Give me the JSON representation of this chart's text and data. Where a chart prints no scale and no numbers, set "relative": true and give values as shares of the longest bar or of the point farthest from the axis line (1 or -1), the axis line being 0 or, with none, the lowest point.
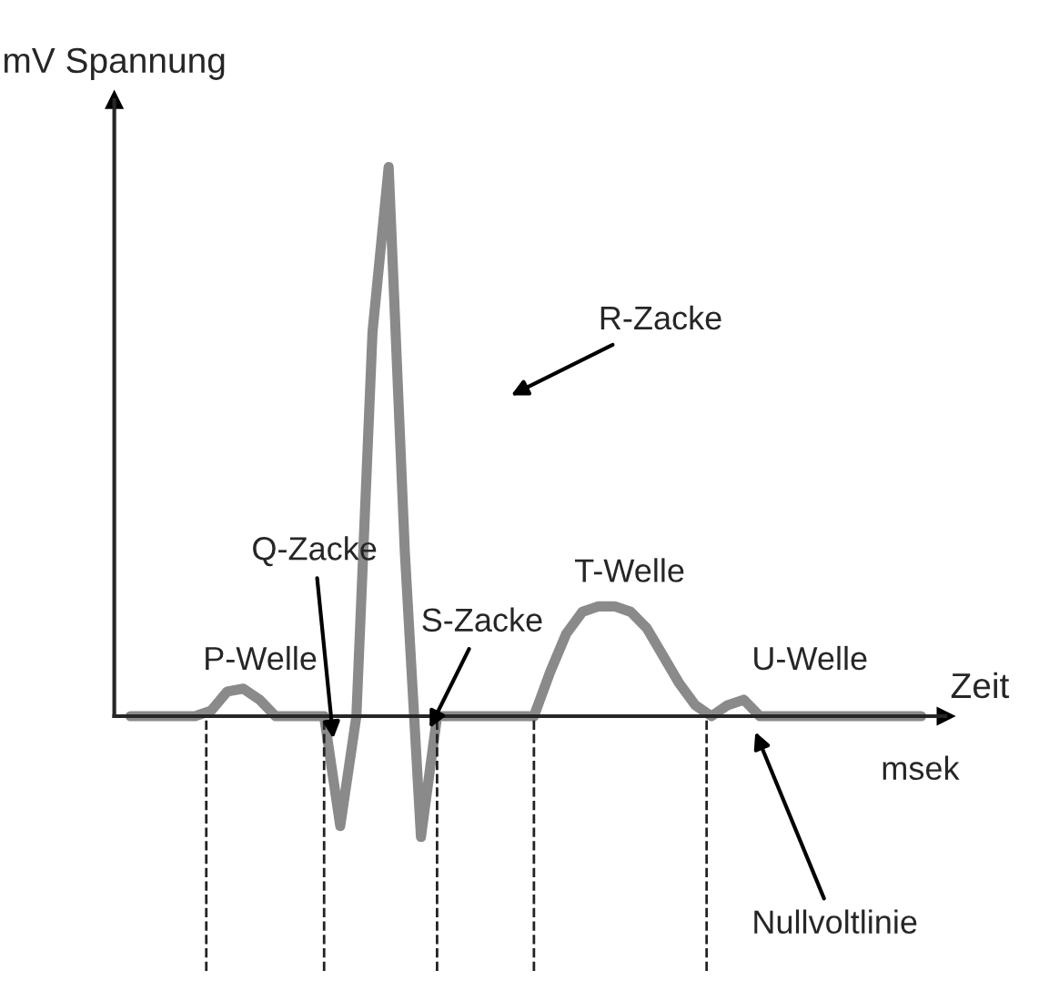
{
  "chart_data": {
    "type": "line",
    "relative": true,
    "ylabel": "mV Spannung",
    "xlabel": "Zeit",
    "categories": [
      null,
      null,
      null,
      null,
      null,
      null,
      null,
      null,
      null,
      null,
      null,
      null,
      null,
      null,
      null,
      null,
      null,
      null,
      null,
      null,
      null,
      null,
      null,
      null,
      null,
      null,
      null,
      null,
      null,
      null,
      null,
      null,
      null,
      null,
      null,
      null,
      null,
      null,
      null,
      null,
      null,
      null,
      null,
      null,
      null,
      null,
      null,
      null,
      null,
      null
    ],
    "series": [
      {
        "color": "#8a8a8a",
        "values": [
          0,
          0,
          0,
          0,
          0,
          0.01,
          0.045,
          0.05,
          0.03,
          0,
          0,
          0,
          0,
          -0.2,
          0,
          0.7,
          1,
          0.3,
          -0.22,
          0,
          0,
          0,
          0,
          0,
          0,
          0,
          0.08,
          0.15,
          0.19,
          0.2,
          0.2,
          0.19,
          0.16,
          0.11,
          0.06,
          0.02,
          0,
          0.02,
          0.03,
          0,
          0,
          0,
          0,
          0,
          0,
          0,
          0,
          0,
          0,
          0
        ]
      }
    ],
    "annotations": [
      "R-Zacke",
      "Q-Zacke",
      "P-Welle",
      "S-Zacke",
      "T-Welle",
      "U-Welle",
      "Nullvoltlinie",
      "msek"
    ],
    "grid": false
  }
}
